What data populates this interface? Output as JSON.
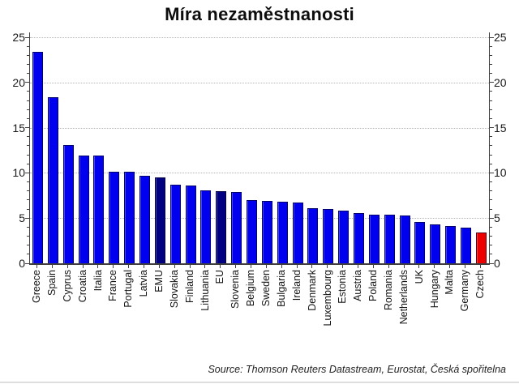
{
  "title": "Míra nezaměstnanosti",
  "source": "Source: Thomson Reuters Datastream, Eurostat, Česká spořitelna",
  "chart_data": {
    "type": "bar",
    "title": "Míra nezaměstnanosti",
    "xlabel": "",
    "ylabel": "",
    "ylim": [
      0,
      25
    ],
    "y_axis": {
      "ticks": [
        0,
        5,
        10,
        15,
        20,
        25
      ],
      "minor_tick_interval": 1,
      "labels_on_both_sides": true
    },
    "grid": {
      "horizontal": true,
      "style": "dotted"
    },
    "legend": "none",
    "colors": {
      "default": "#0000EE",
      "aggregate": "#000080",
      "highlight": "#EE0000",
      "axis": "#3f3f3f",
      "grid": "#b5b5b5"
    },
    "bars": [
      {
        "label": "Greece",
        "value": 23.4
      },
      {
        "label": "Spain",
        "value": 18.4
      },
      {
        "label": "Cyprus",
        "value": 13.1
      },
      {
        "label": "Croatia",
        "value": 11.9
      },
      {
        "label": "Italia",
        "value": 11.9
      },
      {
        "label": "France",
        "value": 10.1
      },
      {
        "label": "Portugal",
        "value": 10.1
      },
      {
        "label": "Latvia",
        "value": 9.7
      },
      {
        "label": "EMU",
        "value": 9.5,
        "color": "aggregate"
      },
      {
        "label": "Slovakia",
        "value": 8.7
      },
      {
        "label": "Finland",
        "value": 8.6
      },
      {
        "label": "Lithuania",
        "value": 8.1
      },
      {
        "label": "EU",
        "value": 8.0,
        "color": "aggregate"
      },
      {
        "label": "Slovenia",
        "value": 7.9
      },
      {
        "label": "Belgium",
        "value": 7.0
      },
      {
        "label": "Sweden",
        "value": 6.9
      },
      {
        "label": "Bulgaria",
        "value": 6.8
      },
      {
        "label": "Ireland",
        "value": 6.7
      },
      {
        "label": "Denmark",
        "value": 6.1
      },
      {
        "label": "Luxembourg",
        "value": 6.0
      },
      {
        "label": "Estonia",
        "value": 5.8
      },
      {
        "label": "Austria",
        "value": 5.6
      },
      {
        "label": "Poland",
        "value": 5.4
      },
      {
        "label": "Romania",
        "value": 5.4
      },
      {
        "label": "Netherlands",
        "value": 5.3
      },
      {
        "label": "UK",
        "value": 4.6
      },
      {
        "label": "Hungary",
        "value": 4.3
      },
      {
        "label": "Malta",
        "value": 4.1
      },
      {
        "label": "Germany",
        "value": 3.9
      },
      {
        "label": "Czech",
        "value": 3.4,
        "color": "highlight"
      }
    ]
  }
}
